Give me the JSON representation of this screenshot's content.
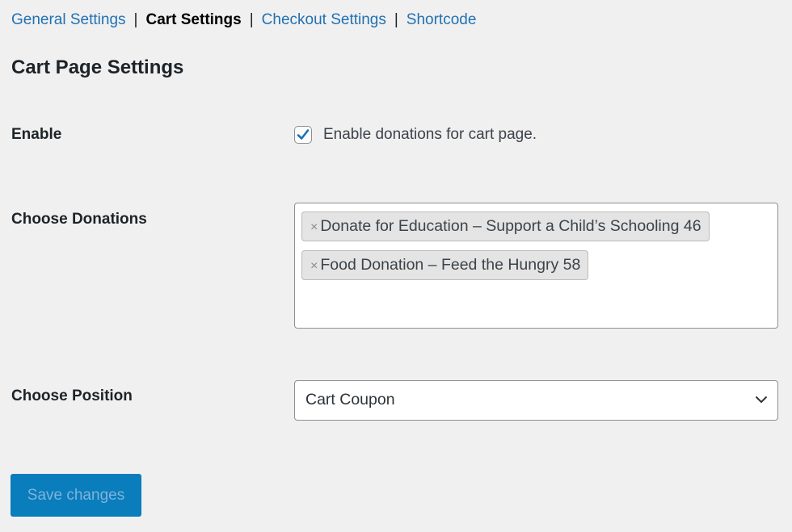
{
  "nav": {
    "tabs": [
      {
        "label": "General Settings",
        "active": false
      },
      {
        "label": "Cart Settings",
        "active": true
      },
      {
        "label": "Checkout Settings",
        "active": false
      },
      {
        "label": "Shortcode",
        "active": false
      }
    ],
    "separator": "|"
  },
  "page_title": "Cart Page Settings",
  "fields": {
    "enable": {
      "label": "Enable",
      "checkbox_label": "Enable donations for cart page.",
      "checked": true
    },
    "donations": {
      "label": "Choose Donations",
      "remove_icon": "×",
      "selected": [
        "Donate for Education – Support a Child’s Schooling 46",
        "Food Donation – Feed the Hungry 58"
      ]
    },
    "position": {
      "label": "Choose Position",
      "value": "Cart Coupon"
    }
  },
  "save_label": "Save changes",
  "colors": {
    "link": "#2271b1",
    "primary_button": "#0a7dbd",
    "background": "#f0f0f1"
  }
}
